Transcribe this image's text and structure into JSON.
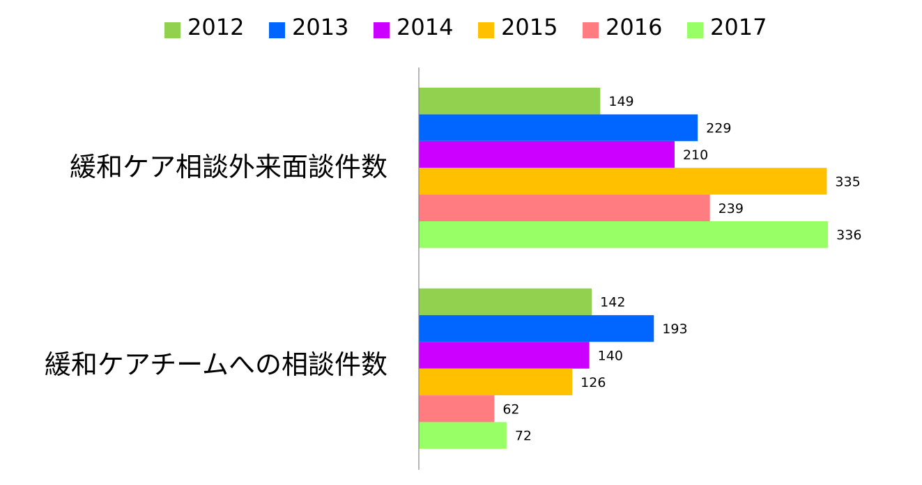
{
  "chart_data": {
    "type": "bar",
    "orientation": "horizontal",
    "title": "",
    "xlabel": "",
    "ylabel": "",
    "xlim": [
      0,
      350
    ],
    "grid": false,
    "legend_position": "top",
    "categories": [
      "緩和ケア相談外来面談件数",
      "緩和ケアチームへの相談件数"
    ],
    "series": [
      {
        "name": "2012",
        "color": "#92d050",
        "values": [
          149,
          142
        ]
      },
      {
        "name": "2013",
        "color": "#0066ff",
        "values": [
          229,
          193
        ]
      },
      {
        "name": "2014",
        "color": "#cc00ff",
        "values": [
          210,
          140
        ]
      },
      {
        "name": "2015",
        "color": "#ffc000",
        "values": [
          335,
          126
        ]
      },
      {
        "name": "2016",
        "color": "#ff7c80",
        "values": [
          239,
          62
        ]
      },
      {
        "name": "2017",
        "color": "#99ff66",
        "values": [
          336,
          72
        ]
      }
    ]
  }
}
